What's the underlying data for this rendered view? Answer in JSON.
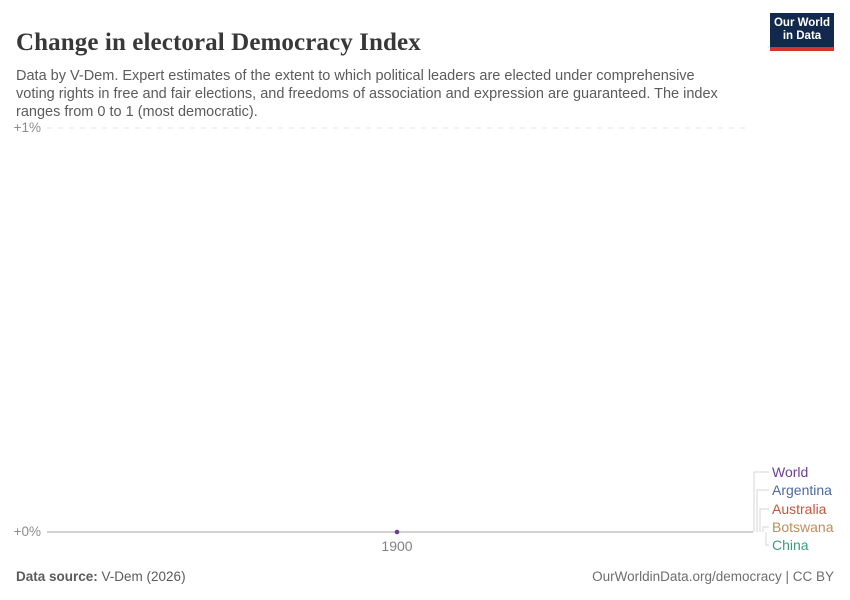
{
  "header": {
    "title": "Change in electoral Democracy Index",
    "subtitle": "Data by V-Dem. Expert estimates of the extent to which political leaders are elected under comprehensive voting rights in free and fair elections, and freedoms of association and expression are guaranteed. The index ranges from 0 to 1 (most democratic).",
    "logo": {
      "line1": "Our World",
      "line2": "in Data",
      "bg_color": "#12294d",
      "stripe_color": "#d7332c"
    }
  },
  "chart_data": {
    "type": "line",
    "title": "Change in electoral Democracy Index",
    "x": [
      1900
    ],
    "x_tick_labels": [
      "1900"
    ],
    "y_axis": {
      "unit": "%",
      "ticks": [
        {
          "label": "+1%",
          "value": 1
        },
        {
          "label": "+0%",
          "value": 0
        }
      ],
      "ylim": [
        0,
        1
      ]
    },
    "series": [
      {
        "name": "World",
        "values": [
          0
        ],
        "color": "#6d3e91"
      },
      {
        "name": "Argentina",
        "values": [
          0
        ],
        "color": "#4c6a9c"
      },
      {
        "name": "Australia",
        "values": [
          0
        ],
        "color": "#c0573c"
      },
      {
        "name": "Botswana",
        "values": [
          0
        ],
        "color": "#bc8e5a"
      },
      {
        "name": "China",
        "values": [
          0
        ],
        "color": "#3d9c7c"
      }
    ],
    "legend_position": "right",
    "grid": "dashed horizontal gridline at +1%, solid zero line at +0%"
  },
  "footer": {
    "source_label": "Data source:",
    "source_value": " V-Dem (2026)",
    "attribution": "OurWorldinData.org/democracy | CC BY"
  },
  "colors": {
    "title_text": "#383838",
    "subtitle_text": "#5b5b5b",
    "axis_text": "#8c8c8c",
    "gridline": "#e4e4e4",
    "zero_line": "#a3a3a3",
    "connector": "#d4d4d4"
  }
}
